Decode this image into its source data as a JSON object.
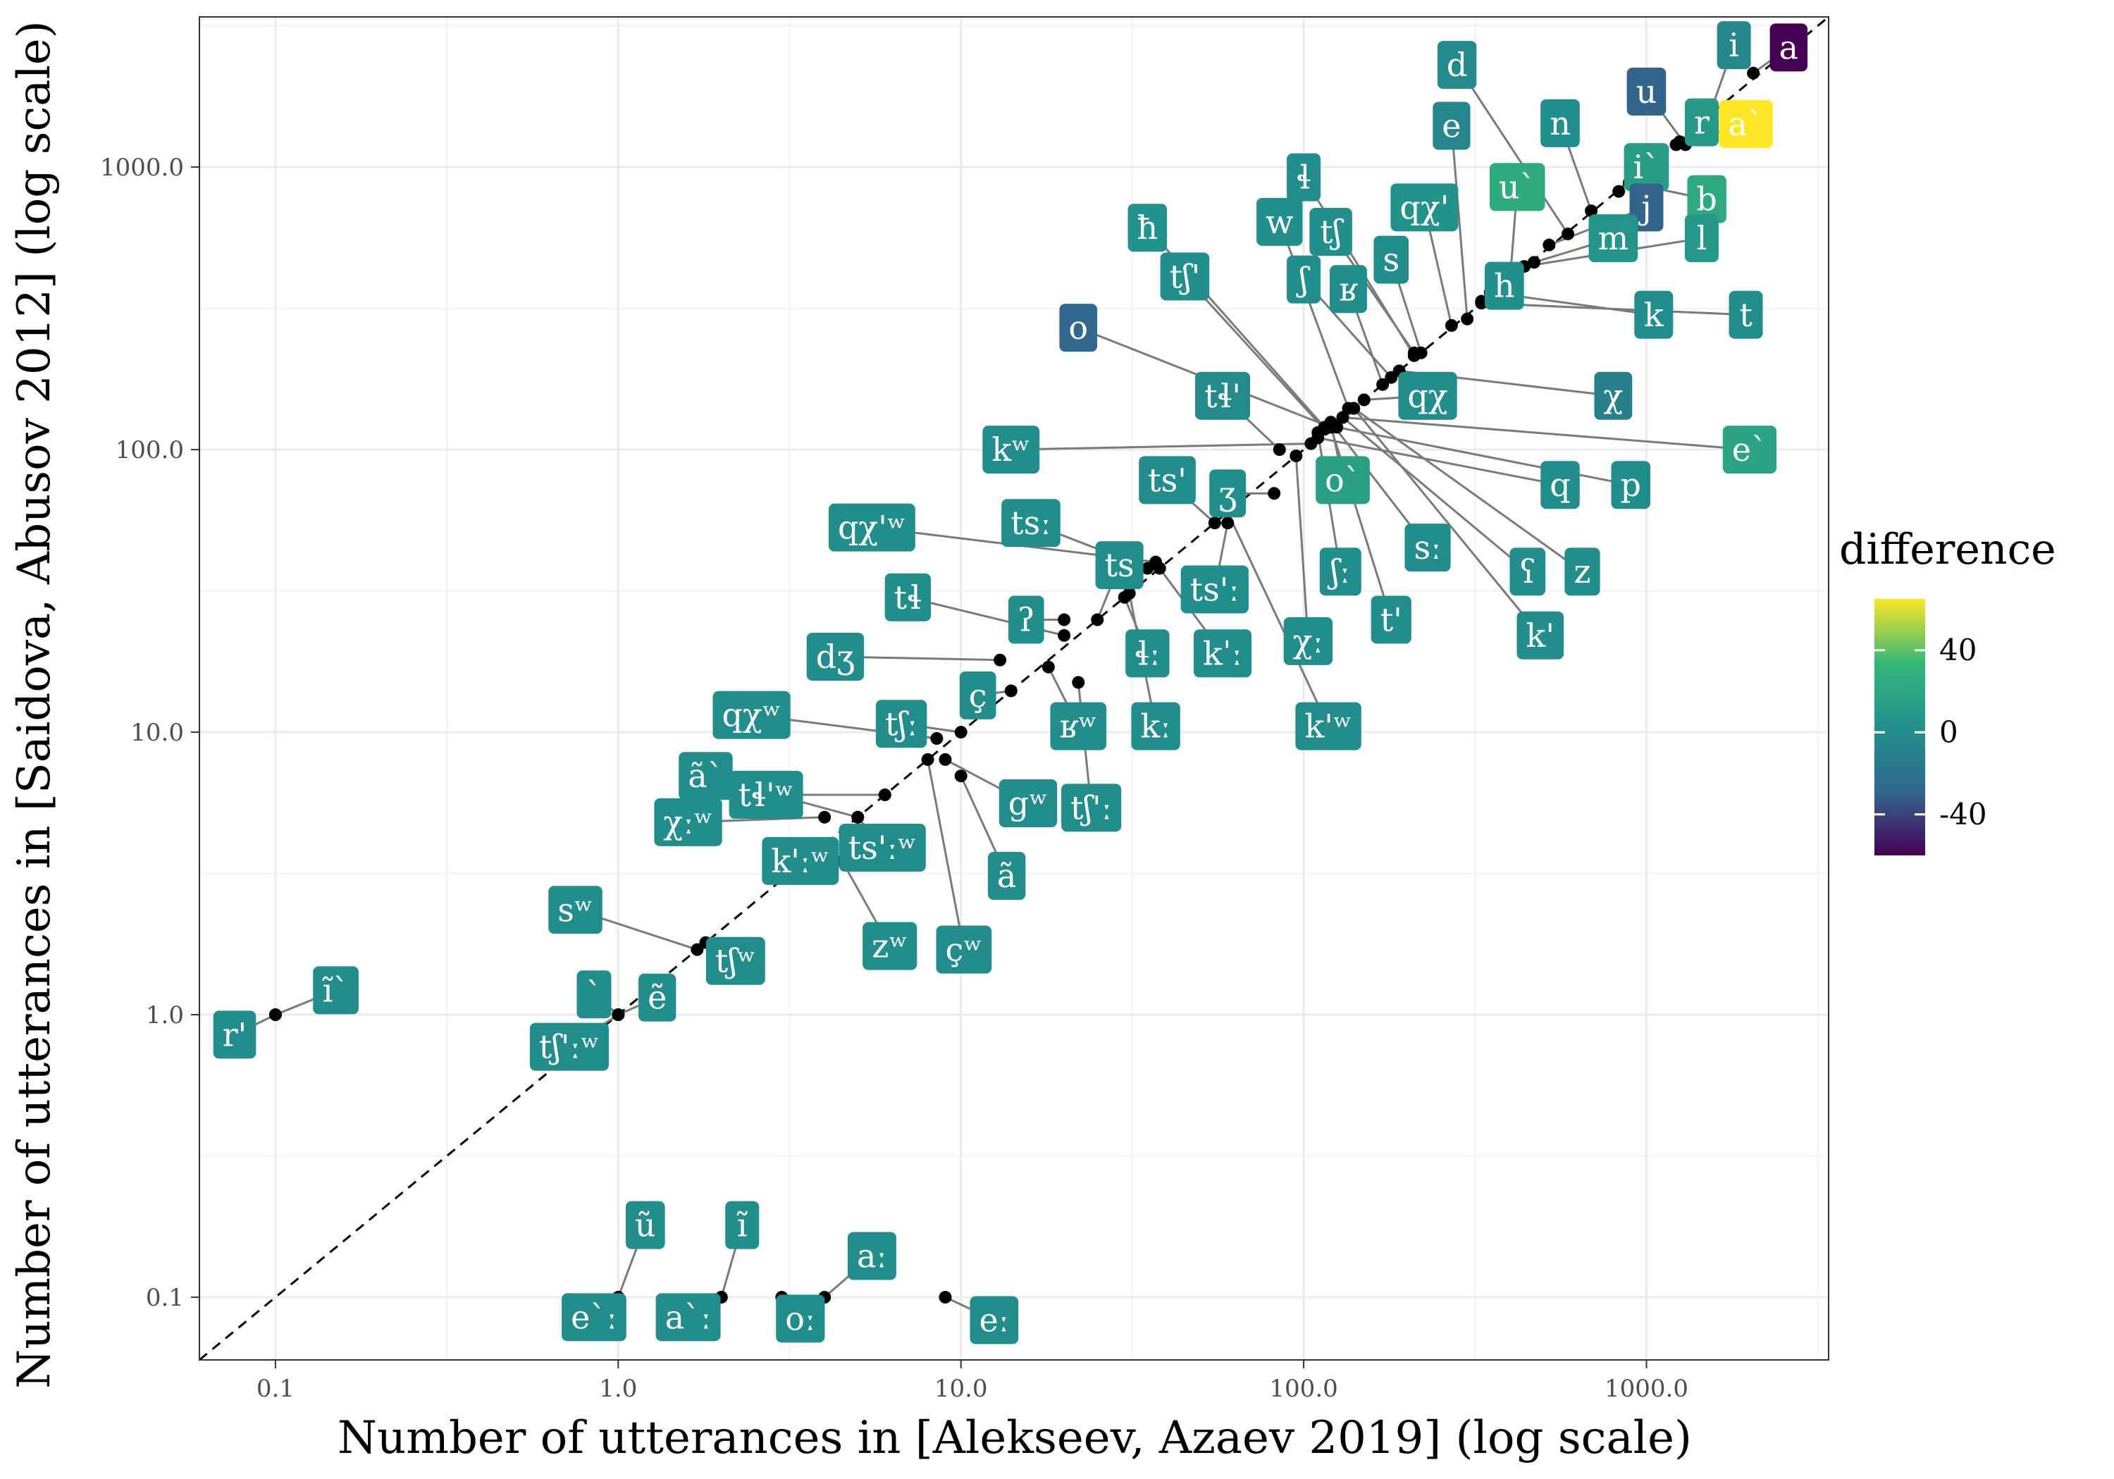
{
  "chart_data": {
    "type": "scatter",
    "xlabel": "Number of utterances in [Alekseev, Azaev 2019] (log scale)",
    "ylabel": "Number of utterances in [Saidova, Abusov 2012] (log scale)",
    "x_scale": "log",
    "y_scale": "log",
    "xlim": [
      0.06,
      3400
    ],
    "ylim": [
      0.06,
      3400
    ],
    "x_ticks": [
      0.1,
      1.0,
      10.0,
      100.0,
      1000.0
    ],
    "x_tick_labels": [
      "0.1",
      "1.0",
      "10.0",
      "100.0",
      "1000.0"
    ],
    "y_ticks": [
      0.1,
      1.0,
      10.0,
      100.0,
      1000.0
    ],
    "y_tick_labels": [
      "0.1",
      "1.0",
      "10.0",
      "100.0",
      "1000.0"
    ],
    "reference_line": "y = x (dashed)",
    "grid": true,
    "legend": {
      "title": "difference",
      "position": "right",
      "range": [
        -60,
        65
      ],
      "ticks": [
        40,
        0,
        -40
      ],
      "tick_labels": [
        "40",
        "0",
        "-40"
      ],
      "palette": [
        "#440154",
        "#31688e",
        "#21918c",
        "#35b779",
        "#fde725"
      ]
    },
    "points": [
      {
        "label": "a",
        "x": 2050,
        "y": 2150,
        "diff": -60,
        "lx": 2600,
        "ly": 2650
      },
      {
        "label": "i",
        "x": 1450,
        "y": 1280,
        "diff": -5,
        "lx": 1800,
        "ly": 2700
      },
      {
        "label": "d",
        "x": 590,
        "y": 580,
        "diff": -2,
        "lx": 280,
        "ly": 2300
      },
      {
        "label": "u",
        "x": 1300,
        "y": 1200,
        "diff": -30,
        "lx": 1000,
        "ly": 1850
      },
      {
        "label": "r",
        "x": 1250,
        "y": 1230,
        "diff": 10,
        "lx": 1450,
        "ly": 1440
      },
      {
        "label": "a`",
        "x": 1220,
        "y": 1200,
        "diff": 65,
        "lx": 1950,
        "ly": 1420
      },
      {
        "label": "n",
        "x": 690,
        "y": 700,
        "diff": 2,
        "lx": 560,
        "ly": 1430
      },
      {
        "label": "i`",
        "x": 830,
        "y": 820,
        "diff": 12,
        "lx": 1000,
        "ly": 1000
      },
      {
        "label": "e",
        "x": 300,
        "y": 290,
        "diff": -5,
        "lx": 270,
        "ly": 1400
      },
      {
        "label": "ɬ",
        "x": 210,
        "y": 215,
        "diff": 0,
        "lx": 100,
        "ly": 920
      },
      {
        "label": "u`",
        "x": 400,
        "y": 400,
        "diff": 25,
        "lx": 420,
        "ly": 850
      },
      {
        "label": "b",
        "x": 890,
        "y": 880,
        "diff": 22,
        "lx": 1500,
        "ly": 770
      },
      {
        "label": "qχ'",
        "x": 270,
        "y": 275,
        "diff": 3,
        "lx": 225,
        "ly": 720
      },
      {
        "label": "j",
        "x": 520,
        "y": 530,
        "diff": -30,
        "lx": 1000,
        "ly": 720
      },
      {
        "label": "ħ",
        "x": 115,
        "y": 120,
        "diff": 3,
        "lx": 35,
        "ly": 610
      },
      {
        "label": "w",
        "x": 135,
        "y": 140,
        "diff": 1,
        "lx": 85,
        "ly": 640
      },
      {
        "label": "tʃ",
        "x": 210,
        "y": 220,
        "diff": 2,
        "lx": 120,
        "ly": 590
      },
      {
        "label": "m",
        "x": 470,
        "y": 460,
        "diff": 5,
        "lx": 800,
        "ly": 560
      },
      {
        "label": "l",
        "x": 440,
        "y": 445,
        "diff": 8,
        "lx": 1450,
        "ly": 560
      },
      {
        "label": "s",
        "x": 220,
        "y": 220,
        "diff": 0,
        "lx": 180,
        "ly": 470
      },
      {
        "label": "tʃ'",
        "x": 115,
        "y": 118,
        "diff": 0,
        "lx": 45,
        "ly": 410
      },
      {
        "label": "ʃ",
        "x": 180,
        "y": 180,
        "diff": 0,
        "lx": 100,
        "ly": 400
      },
      {
        "label": "ʁ",
        "x": 170,
        "y": 170,
        "diff": 0,
        "lx": 135,
        "ly": 370
      },
      {
        "label": "h",
        "x": 330,
        "y": 335,
        "diff": 2,
        "lx": 385,
        "ly": 380
      },
      {
        "label": "k",
        "x": 350,
        "y": 360,
        "diff": 0,
        "lx": 1050,
        "ly": 300
      },
      {
        "label": "t",
        "x": 330,
        "y": 330,
        "diff": 0,
        "lx": 1950,
        "ly": 300
      },
      {
        "label": "o",
        "x": 120,
        "y": 120,
        "diff": -28,
        "lx": 22,
        "ly": 270
      },
      {
        "label": "tɬ'",
        "x": 85,
        "y": 100,
        "diff": -2,
        "lx": 58,
        "ly": 155
      },
      {
        "label": "qχ",
        "x": 150,
        "y": 150,
        "diff": 0,
        "lx": 230,
        "ly": 155
      },
      {
        "label": "χ",
        "x": 190,
        "y": 190,
        "diff": -10,
        "lx": 800,
        "ly": 155
      },
      {
        "label": "e`",
        "x": 130,
        "y": 130,
        "diff": 18,
        "lx": 2000,
        "ly": 100
      },
      {
        "label": "kʷ",
        "x": 105,
        "y": 105,
        "diff": 0,
        "lx": 14,
        "ly": 100
      },
      {
        "label": "ts'",
        "x": 55,
        "y": 55,
        "diff": 0,
        "lx": 40,
        "ly": 78
      },
      {
        "label": "ʒ",
        "x": 82,
        "y": 70,
        "diff": 0,
        "lx": 60,
        "ly": 70
      },
      {
        "label": "o`",
        "x": 120,
        "y": 125,
        "diff": 15,
        "lx": 130,
        "ly": 78
      },
      {
        "label": "q",
        "x": 110,
        "y": 110,
        "diff": 0,
        "lx": 560,
        "ly": 75
      },
      {
        "label": "p",
        "x": 125,
        "y": 120,
        "diff": 0,
        "lx": 900,
        "ly": 75
      },
      {
        "label": "qχ'ʷ",
        "x": 37,
        "y": 40,
        "diff": 0,
        "lx": 5.5,
        "ly": 53
      },
      {
        "label": "tsː",
        "x": 35,
        "y": 38,
        "diff": 0,
        "lx": 16,
        "ly": 55
      },
      {
        "label": "ts",
        "x": 25,
        "y": 25,
        "diff": 0,
        "lx": 29,
        "ly": 39
      },
      {
        "label": "ts'ː",
        "x": 60,
        "y": 55,
        "diff": 0,
        "lx": 55,
        "ly": 32
      },
      {
        "label": "ʃː",
        "x": 110,
        "y": 115,
        "diff": 0,
        "lx": 128,
        "ly": 37
      },
      {
        "label": "sː",
        "x": 120,
        "y": 125,
        "diff": 0,
        "lx": 230,
        "ly": 45
      },
      {
        "label": "ʕ",
        "x": 130,
        "y": 130,
        "diff": 0,
        "lx": 450,
        "ly": 37
      },
      {
        "label": "z",
        "x": 140,
        "y": 140,
        "diff": 0,
        "lx": 650,
        "ly": 37
      },
      {
        "label": "tɬ",
        "x": 20,
        "y": 22,
        "diff": 0,
        "lx": 7,
        "ly": 30
      },
      {
        "label": "ʔ",
        "x": 20,
        "y": 25,
        "diff": 0,
        "lx": 15.5,
        "ly": 25
      },
      {
        "label": "ɬː",
        "x": 30,
        "y": 30,
        "diff": 0,
        "lx": 35,
        "ly": 19
      },
      {
        "label": "kˈː",
        "x": 38,
        "y": 38,
        "diff": 0,
        "lx": 58,
        "ly": 19
      },
      {
        "label": "χː",
        "x": 95,
        "y": 95,
        "diff": 0,
        "lx": 103,
        "ly": 21
      },
      {
        "label": "t'",
        "x": 120,
        "y": 120,
        "diff": 0,
        "lx": 180,
        "ly": 25
      },
      {
        "label": "k'",
        "x": 140,
        "y": 140,
        "diff": 0,
        "lx": 490,
        "ly": 22
      },
      {
        "label": "dʒ",
        "x": 13,
        "y": 18,
        "diff": 0,
        "lx": 4.3,
        "ly": 18.5
      },
      {
        "label": "ç",
        "x": 14,
        "y": 14,
        "diff": 0,
        "lx": 11.2,
        "ly": 13.5
      },
      {
        "label": "ʁʷ",
        "x": 18,
        "y": 17,
        "diff": 0,
        "lx": 22,
        "ly": 10.5
      },
      {
        "label": "kː",
        "x": 31,
        "y": 31,
        "diff": 0,
        "lx": 37,
        "ly": 10.5
      },
      {
        "label": "k'ʷ",
        "x": 60,
        "y": 60,
        "diff": 0,
        "lx": 118,
        "ly": 10.5
      },
      {
        "label": "qχʷ",
        "x": 8.5,
        "y": 9.5,
        "diff": 0,
        "lx": 2.45,
        "ly": 11.5
      },
      {
        "label": "tʃː",
        "x": 10,
        "y": 10,
        "diff": 0,
        "lx": 6.7,
        "ly": 10.7
      },
      {
        "label": "ã`",
        "x": 5,
        "y": 5,
        "diff": 0,
        "lx": 1.8,
        "ly": 7.0
      },
      {
        "label": "tɬ'ʷ",
        "x": 6,
        "y": 6,
        "diff": 0,
        "lx": 2.7,
        "ly": 6.0
      },
      {
        "label": "gʷ",
        "x": 9,
        "y": 8,
        "diff": 0,
        "lx": 15.7,
        "ly": 5.6
      },
      {
        "label": "tʃ'ː",
        "x": 22,
        "y": 15,
        "diff": 0,
        "lx": 24,
        "ly": 5.4
      },
      {
        "label": "χːʷ",
        "x": 4,
        "y": 5,
        "diff": 0,
        "lx": 1.6,
        "ly": 4.8
      },
      {
        "label": "ts'ːʷ",
        "x": 5,
        "y": 5,
        "diff": 0,
        "lx": 5.9,
        "ly": 3.9
      },
      {
        "label": "k'ːʷ",
        "x": 4,
        "y": 4,
        "diff": 0,
        "lx": 3.4,
        "ly": 3.5
      },
      {
        "label": "ã",
        "x": 10,
        "y": 7,
        "diff": 0,
        "lx": 13.6,
        "ly": 3.1
      },
      {
        "label": "sʷ",
        "x": 1.7,
        "y": 1.7,
        "diff": 0,
        "lx": 0.75,
        "ly": 2.35
      },
      {
        "label": "zʷ",
        "x": 4.5,
        "y": 3.5,
        "diff": 0,
        "lx": 6.2,
        "ly": 1.75
      },
      {
        "label": "çʷ",
        "x": 8,
        "y": 8,
        "diff": 0,
        "lx": 10.2,
        "ly": 1.7
      },
      {
        "label": "tʃʷ",
        "x": 1.8,
        "y": 1.8,
        "diff": 0,
        "lx": 2.2,
        "ly": 1.55
      },
      {
        "label": "ĩ`",
        "x": 0.1,
        "y": 1.0,
        "diff": 0,
        "lx": 0.15,
        "ly": 1.22
      },
      {
        "label": "`",
        "x": 1.0,
        "y": 1.0,
        "diff": 0,
        "lx": 0.85,
        "ly": 1.18
      },
      {
        "label": "ẽ",
        "x": 1.0,
        "y": 1.0,
        "diff": 0,
        "lx": 1.3,
        "ly": 1.15
      },
      {
        "label": "r'",
        "x": 0.1,
        "y": 1.0,
        "diff": 0,
        "lx": 0.063,
        "ly": 0.85
      },
      {
        "label": "tʃ'ːʷ",
        "x": 1.0,
        "y": 1.0,
        "diff": 0,
        "lx": 0.72,
        "ly": 0.77
      },
      {
        "label": "ũ",
        "x": 1.0,
        "y": 0.1,
        "diff": 0,
        "lx": 1.2,
        "ly": 0.18
      },
      {
        "label": "ĩ",
        "x": 2.0,
        "y": 0.1,
        "diff": 0,
        "lx": 2.3,
        "ly": 0.18
      },
      {
        "label": "aː",
        "x": 4.0,
        "y": 0.1,
        "diff": 0,
        "lx": 5.5,
        "ly": 0.14
      },
      {
        "label": "e`ː",
        "x": 1.0,
        "y": 0.1,
        "diff": 0,
        "lx": 0.85,
        "ly": 0.085
      },
      {
        "label": "a`ː",
        "x": 2.0,
        "y": 0.1,
        "diff": 0,
        "lx": 1.6,
        "ly": 0.085
      },
      {
        "label": "oː",
        "x": 3.0,
        "y": 0.1,
        "diff": 0,
        "lx": 3.4,
        "ly": 0.084
      },
      {
        "label": "eː",
        "x": 9.0,
        "y": 0.1,
        "diff": 0,
        "lx": 12.5,
        "ly": 0.083
      }
    ]
  }
}
